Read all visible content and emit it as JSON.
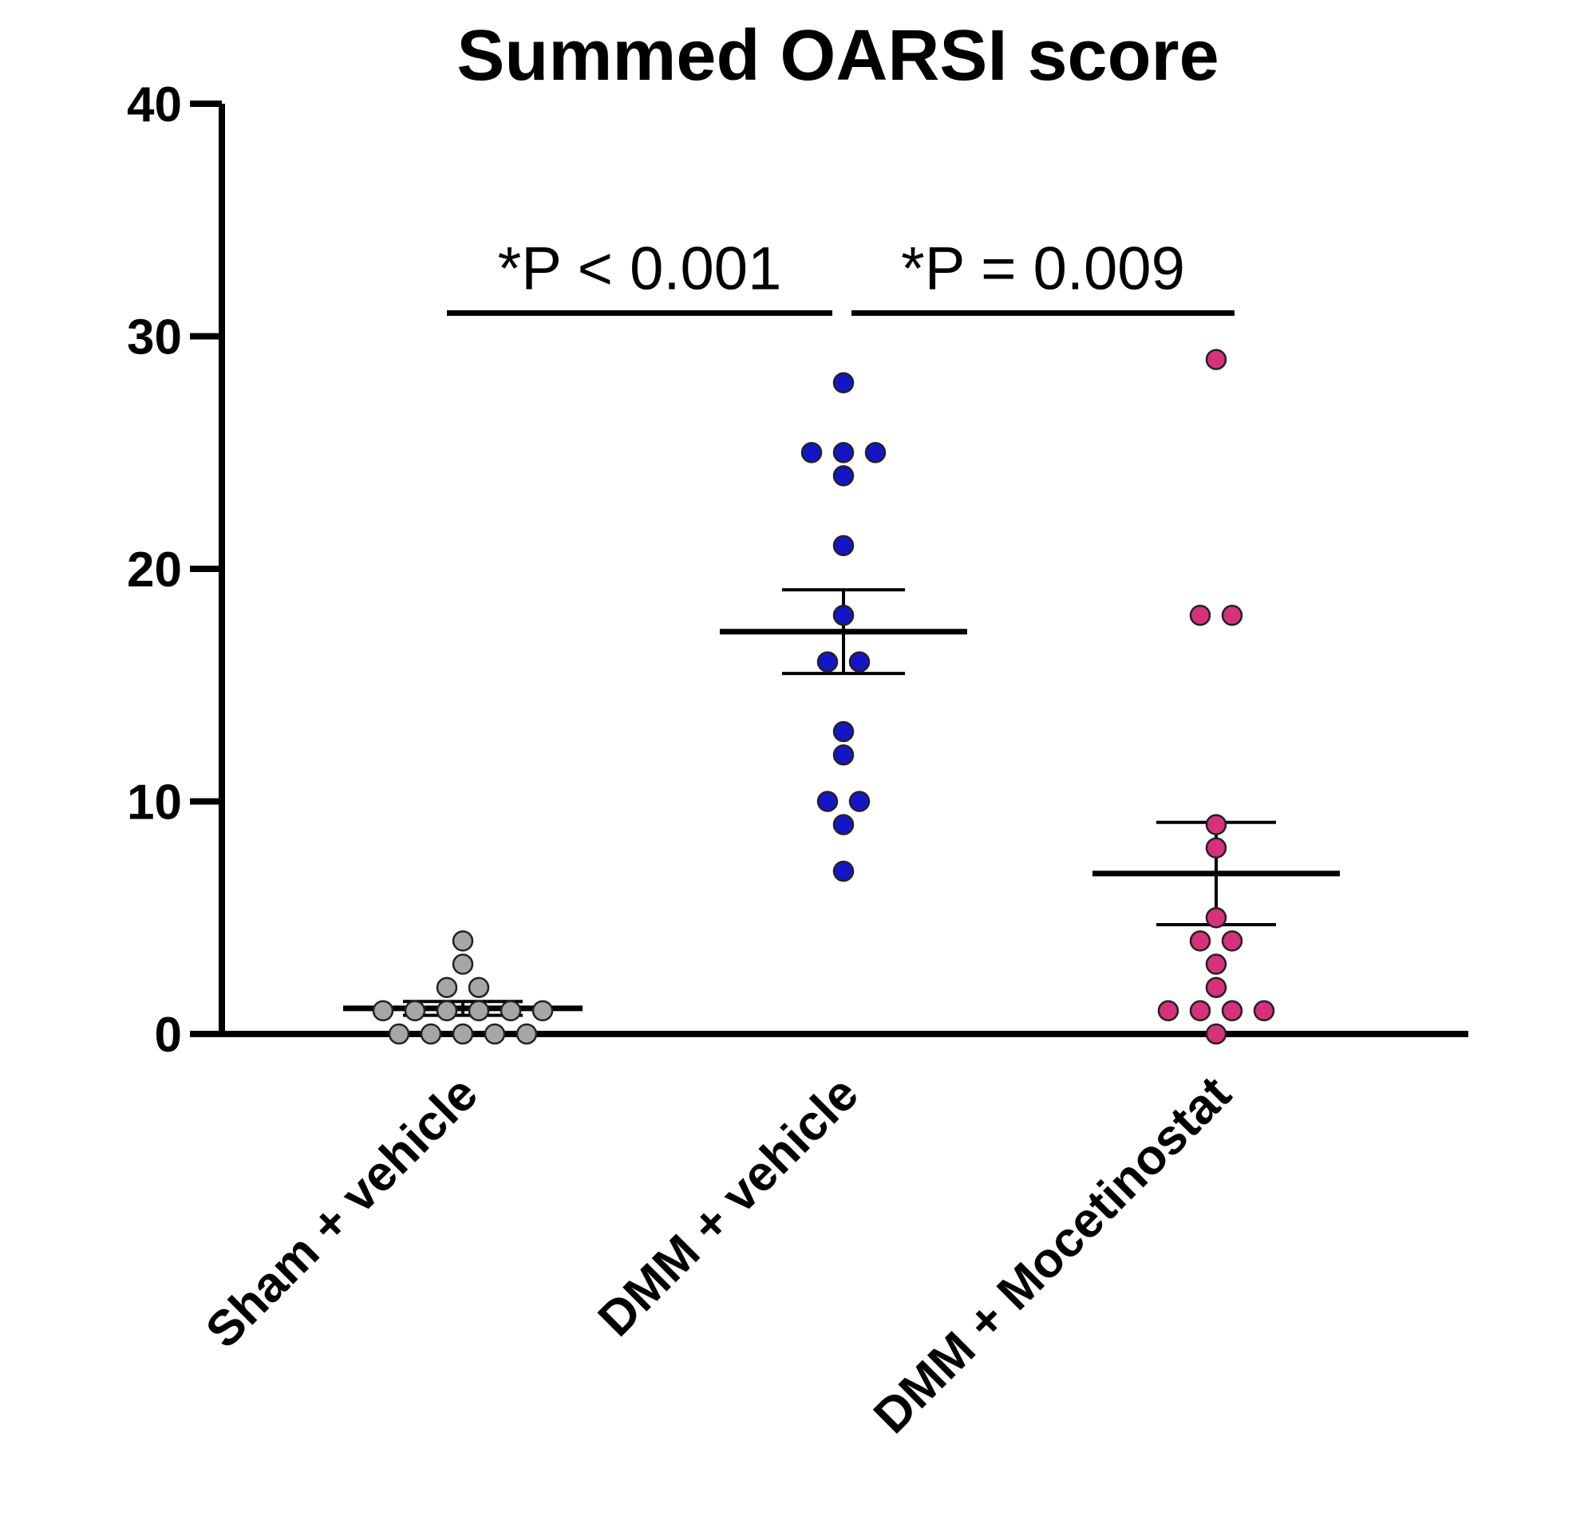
{
  "chart_data": {
    "type": "scatter",
    "title": "Summed OARSI score",
    "xlabel": "",
    "ylabel": "",
    "ylim": [
      0,
      40
    ],
    "yticks": [
      0,
      10,
      20,
      30,
      40
    ],
    "grid": false,
    "categories": [
      "Sham + vehicle",
      "DMM + vehicle",
      "DMM + Mocetinostat"
    ],
    "series": [
      {
        "category": "Sham + vehicle",
        "color": "#a6a6a6",
        "values": [
          4,
          3,
          2,
          2,
          1,
          1,
          1,
          1,
          1,
          1,
          0,
          0,
          0,
          0,
          0
        ],
        "mean": 1.1,
        "sem": [
          0.8,
          1.4
        ]
      },
      {
        "category": "DMM + vehicle",
        "color": "#1515c8",
        "values": [
          28,
          25,
          25,
          25,
          24,
          21,
          18,
          16,
          16,
          13,
          12,
          10,
          10,
          9,
          7
        ],
        "mean": 17.3,
        "sem": [
          15.5,
          19.1
        ]
      },
      {
        "category": "DMM + Mocetinostat",
        "color": "#d6317a",
        "values": [
          29,
          18,
          18,
          9,
          8,
          5,
          4,
          4,
          3,
          2,
          1,
          1,
          1,
          1,
          0
        ],
        "mean": 6.9,
        "sem": [
          4.7,
          9.1
        ]
      }
    ],
    "annotations": [
      {
        "text": "*P < 0.001",
        "from": "Sham + vehicle",
        "to": "DMM + vehicle",
        "y": 31
      },
      {
        "text": "*P = 0.009",
        "from": "DMM + vehicle",
        "to": "DMM + Mocetinostat",
        "y": 31
      }
    ]
  }
}
